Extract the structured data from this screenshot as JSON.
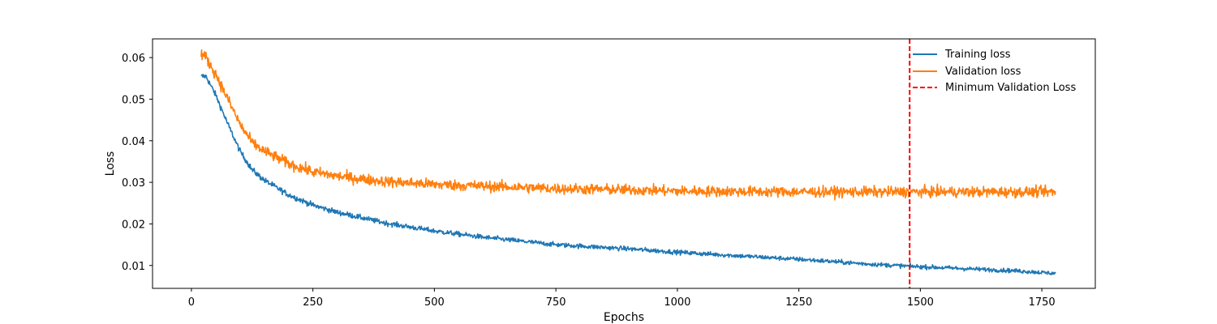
{
  "chart_data": {
    "type": "line",
    "title": "",
    "xlabel": "Epochs",
    "ylabel": "Loss",
    "xlim": [
      -80,
      1860
    ],
    "ylim": [
      0.0045,
      0.0645
    ],
    "xticks": [
      0,
      250,
      500,
      750,
      1000,
      1250,
      1500,
      1750
    ],
    "yticks": [
      0.01,
      0.02,
      0.03,
      0.04,
      0.05,
      0.06
    ],
    "ytick_labels": [
      "0.01",
      "0.02",
      "0.03",
      "0.04",
      "0.05",
      "0.06"
    ],
    "grid": false,
    "legend_position": "top-right",
    "x_start": 20,
    "x_end": 1778,
    "series": [
      {
        "name": "Training loss",
        "color": "#1f77b4",
        "noise": 0.0007,
        "points": [
          [
            20,
            0.0555
          ],
          [
            30,
            0.0555
          ],
          [
            50,
            0.051
          ],
          [
            75,
            0.044
          ],
          [
            100,
            0.0375
          ],
          [
            125,
            0.033
          ],
          [
            150,
            0.0305
          ],
          [
            200,
            0.027
          ],
          [
            250,
            0.0245
          ],
          [
            300,
            0.0228
          ],
          [
            350,
            0.0215
          ],
          [
            400,
            0.0202
          ],
          [
            500,
            0.0183
          ],
          [
            600,
            0.0168
          ],
          [
            750,
            0.015
          ],
          [
            900,
            0.014
          ],
          [
            1000,
            0.0132
          ],
          [
            1100,
            0.0125
          ],
          [
            1250,
            0.0115
          ],
          [
            1400,
            0.0103
          ],
          [
            1500,
            0.0097
          ],
          [
            1600,
            0.0092
          ],
          [
            1700,
            0.0087
          ],
          [
            1778,
            0.0081
          ]
        ]
      },
      {
        "name": "Validation loss",
        "color": "#ff7f0e",
        "noise": 0.0013,
        "points": [
          [
            20,
            0.061
          ],
          [
            30,
            0.06
          ],
          [
            50,
            0.056
          ],
          [
            75,
            0.05
          ],
          [
            100,
            0.044
          ],
          [
            125,
            0.0395
          ],
          [
            150,
            0.0375
          ],
          [
            200,
            0.0345
          ],
          [
            250,
            0.0325
          ],
          [
            300,
            0.0315
          ],
          [
            350,
            0.0308
          ],
          [
            400,
            0.0302
          ],
          [
            500,
            0.0295
          ],
          [
            600,
            0.0291
          ],
          [
            750,
            0.0285
          ],
          [
            900,
            0.0282
          ],
          [
            1000,
            0.0279
          ],
          [
            1250,
            0.0277
          ],
          [
            1500,
            0.0277
          ],
          [
            1778,
            0.0277
          ]
        ]
      }
    ],
    "vline": {
      "name": "Minimum Validation Loss",
      "x": 1478,
      "color": "#ff0000",
      "style": "dashed"
    }
  }
}
